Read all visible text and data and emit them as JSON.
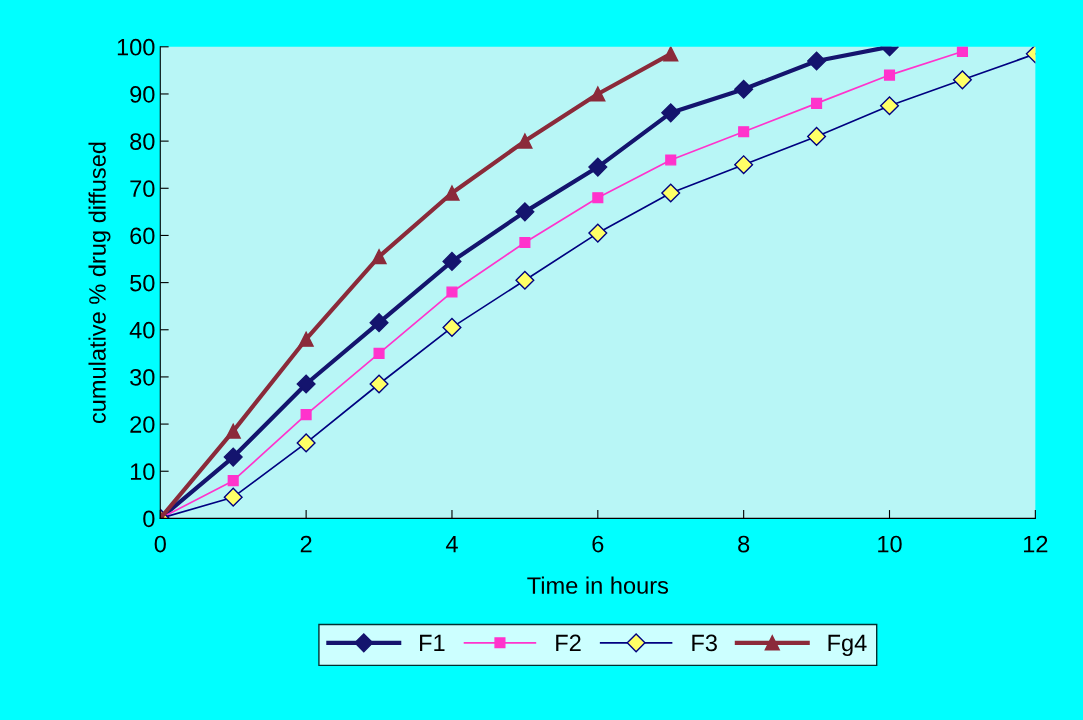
{
  "chart_data": {
    "type": "line",
    "xlabel": "Time in hours",
    "ylabel": "cumulative % drug diffused",
    "xlim": [
      0,
      12
    ],
    "xticks": [
      0,
      2,
      4,
      6,
      8,
      10,
      12
    ],
    "ylim": [
      0,
      100
    ],
    "yticks": [
      0,
      10,
      20,
      30,
      40,
      50,
      60,
      70,
      80,
      90,
      100
    ],
    "grid": false,
    "legend": "bottom",
    "series": [
      {
        "name": "F1",
        "color": "#14146e",
        "marker": "diamond",
        "x": [
          0,
          1,
          2,
          3,
          4,
          5,
          6,
          7,
          8,
          9,
          10
        ],
        "values": [
          0,
          13,
          28.5,
          41.5,
          54.5,
          65,
          74.5,
          86,
          91,
          97,
          100
        ]
      },
      {
        "name": "F2",
        "color": "#ff33cc",
        "marker": "square",
        "x": [
          0,
          1,
          2,
          3,
          4,
          5,
          6,
          7,
          8,
          9,
          10,
          11
        ],
        "values": [
          0,
          8,
          22,
          35,
          48,
          58.5,
          68,
          76,
          82,
          88,
          94,
          99
        ]
      },
      {
        "name": "F3",
        "color": "#ffff66",
        "marker": "diamond",
        "x": [
          0,
          1,
          2,
          3,
          4,
          5,
          6,
          7,
          8,
          9,
          10,
          11,
          12
        ],
        "values": [
          0,
          4.5,
          16,
          28.5,
          40.5,
          50.5,
          60.5,
          69,
          75,
          81,
          87.5,
          93,
          98.5
        ]
      },
      {
        "name": "Fg4",
        "color": "#8b2a3a",
        "marker": "triangle",
        "x": [
          0,
          1,
          2,
          3,
          4,
          5,
          6,
          7
        ],
        "values": [
          0,
          18.5,
          38,
          55.5,
          69,
          80,
          90,
          98.5
        ]
      }
    ]
  }
}
